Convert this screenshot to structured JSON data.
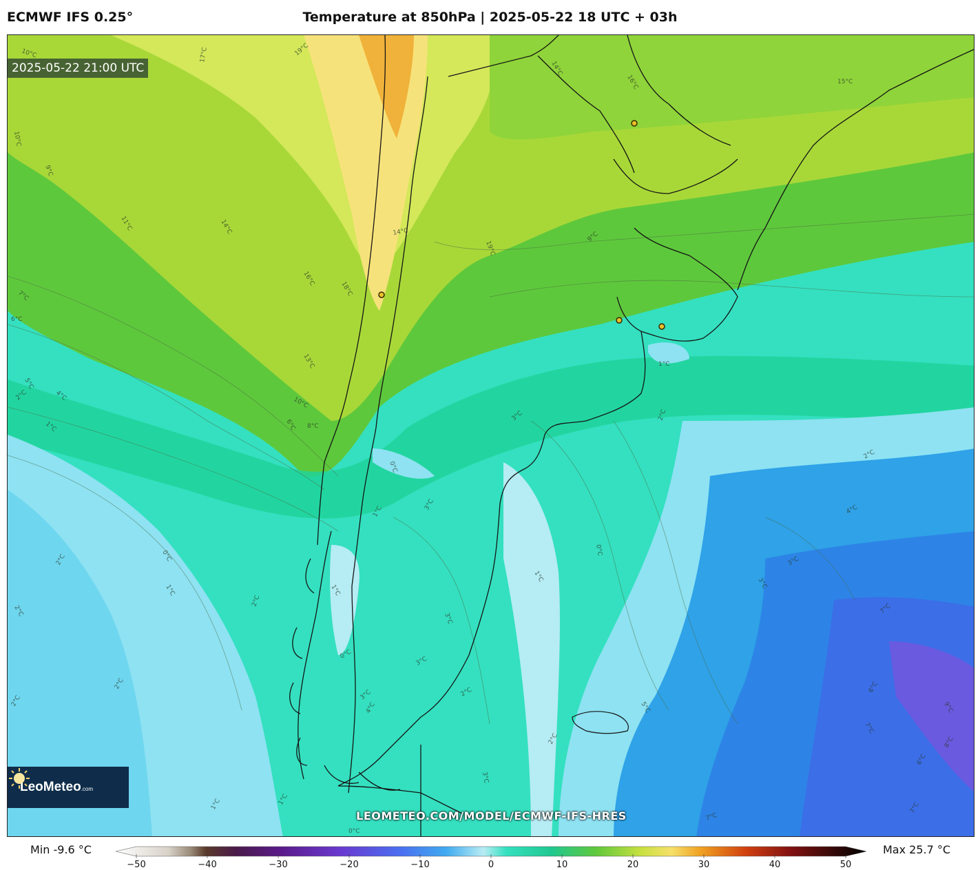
{
  "header": {
    "model": "ECMWF IFS 0.25°",
    "title": "Temperature at 850hPa | 2025-05-22 18 UTC + 03h"
  },
  "map": {
    "valid_time": "2025-05-22 21:00 UTC",
    "watermark": "LEOMETEO.COM/MODEL/ECMWF-IFS-HRES",
    "logo": {
      "brand_main": "LeoMeteo",
      "brand_suffix": ".com"
    },
    "contour_labels": [
      "10°C",
      "17°C",
      "19°C",
      "14°C",
      "16°C",
      "15°C",
      "10°C",
      "9°C",
      "11°C",
      "14°C",
      "16°C",
      "18°C",
      "7°C",
      "6°C",
      "13°C",
      "5°C",
      "4°C",
      "2°C",
      "10°C",
      "6°C",
      "8°C",
      "1°C",
      "14°C",
      "19°C",
      "13°C",
      "9°C",
      "1°C",
      "3°C",
      "2°C",
      "0°C",
      "2°C",
      "1°C",
      "3°C",
      "0°C",
      "2°C",
      "1°C",
      "2°C",
      "1°C",
      "3°C",
      "2°C",
      "4°C",
      "3°C",
      "0°C",
      "1°C",
      "2°C",
      "3°C",
      "2°C",
      "4°C",
      "3°C",
      "5°C",
      "6°C",
      "7°C",
      "9°C",
      "8°C",
      "6°C",
      "7°C",
      "2°C",
      "1°C",
      "7°C",
      "0°C",
      "2°C",
      "1°C"
    ],
    "region_colors": {
      "warmest": "#f0b23a",
      "warm": "#f6e27a",
      "mild": "#a8d838",
      "green": "#5ec83c",
      "teal": "#20d29a",
      "aqua": "#34e0c0",
      "lightblue": "#8ee2f2",
      "paleblue": "#b6ecf4",
      "blue": "#1e96e6",
      "darkblue": "#3c6ee8",
      "purple": "#6a5ae0"
    }
  },
  "legend": {
    "min": "Min -9.6 °C",
    "max": "Max 25.7 °C",
    "ticks": [
      "−50",
      "−40",
      "−30",
      "−20",
      "−10",
      "0",
      "10",
      "20",
      "30",
      "40",
      "50"
    ],
    "tick_values": [
      -50,
      -40,
      -30,
      -20,
      -10,
      0,
      10,
      20,
      30,
      40,
      50
    ],
    "range": [
      -50,
      50
    ]
  }
}
